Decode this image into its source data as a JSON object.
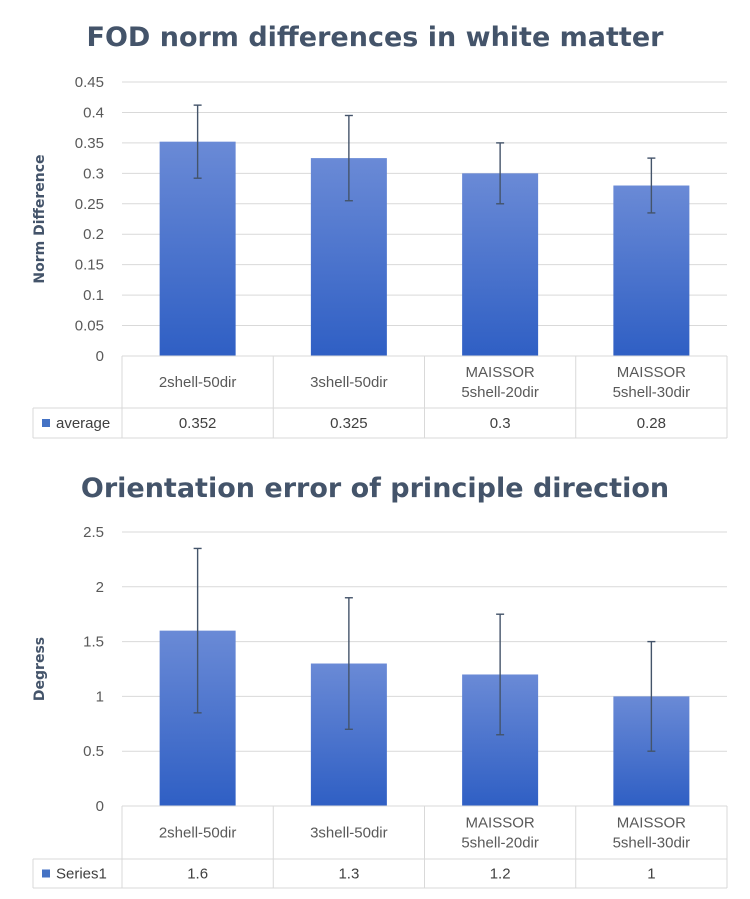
{
  "chart_data": [
    {
      "type": "bar",
      "title": "FOD norm differences in white matter",
      "xlabel": "",
      "ylabel": "Norm Difference",
      "ylim": [
        0,
        0.45
      ],
      "yticks": [
        "0",
        "0.05",
        "0.1",
        "0.15",
        "0.2",
        "0.25",
        "0.3",
        "0.35",
        "0.4",
        "0.45"
      ],
      "categories": [
        [
          "2shell-50dir"
        ],
        [
          "3shell-50dir"
        ],
        [
          "MAISSOR",
          "5shell-20dir"
        ],
        [
          "MAISSOR",
          "5shell-30dir"
        ]
      ],
      "series": [
        {
          "name": "average",
          "values": [
            0.352,
            0.325,
            0.3,
            0.28
          ],
          "labels": [
            "0.352",
            "0.325",
            "0.3",
            "0.28"
          ],
          "error": [
            0.06,
            0.07,
            0.05,
            0.045
          ]
        }
      ],
      "grid": true,
      "legend": "data-table"
    },
    {
      "type": "bar",
      "title": "Orientation error of principle direction",
      "xlabel": "",
      "ylabel": "Degress",
      "ylim": [
        0,
        2.5
      ],
      "yticks": [
        "0",
        "0.5",
        "1",
        "1.5",
        "2",
        "2.5"
      ],
      "categories": [
        [
          "2shell-50dir"
        ],
        [
          "3shell-50dir"
        ],
        [
          "MAISSOR",
          "5shell-20dir"
        ],
        [
          "MAISSOR",
          "5shell-30dir"
        ]
      ],
      "series": [
        {
          "name": "Series1",
          "values": [
            1.6,
            1.3,
            1.2,
            1
          ],
          "labels": [
            "1.6",
            "1.3",
            "1.2",
            "1"
          ],
          "error": [
            0.75,
            0.6,
            0.55,
            0.5
          ]
        }
      ],
      "grid": true,
      "legend": "data-table"
    }
  ],
  "colors": {
    "bar_top": "#6a8ad6",
    "bar_bottom": "#2f5fc4",
    "legend_key": "#4472c4",
    "error_bar": "#44546a"
  }
}
